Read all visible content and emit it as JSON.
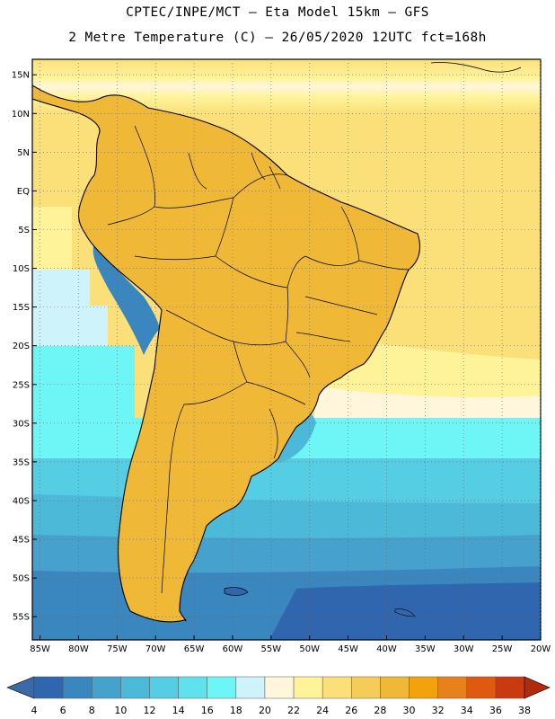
{
  "header": {
    "line1": "CPTEC/INPE/MCT –  Eta Model 15km – GFS",
    "line2": "2 Metre Temperature (C) – 26/05/2020 12UTC fct=168h"
  },
  "map": {
    "region": "South America",
    "lat_labels": [
      "15N",
      "10N",
      "5N",
      "EQ",
      "5S",
      "10S",
      "15S",
      "20S",
      "25S",
      "30S",
      "35S",
      "40S",
      "45S",
      "50S",
      "55S"
    ],
    "lon_labels": [
      "85W",
      "80W",
      "75W",
      "70W",
      "65W",
      "60W",
      "55W",
      "50W",
      "45W",
      "40W",
      "35W",
      "30W",
      "25W",
      "20W"
    ],
    "lat_range": [
      17,
      -58
    ],
    "lon_range": [
      -86,
      -20
    ]
  },
  "legend": {
    "units": "°C",
    "values": [
      "4",
      "6",
      "8",
      "10",
      "12",
      "14",
      "16",
      "18",
      "20",
      "22",
      "24",
      "26",
      "28",
      "30",
      "32",
      "34",
      "36",
      "38"
    ],
    "colors": [
      "#3a6aa8",
      "#2f66ae",
      "#3a86bf",
      "#46a2cd",
      "#4cb9d9",
      "#55cde3",
      "#5fe2ec",
      "#6ef6f6",
      "#cff3fb",
      "#fff6dc",
      "#fff39a",
      "#fbe07a",
      "#f4cc57",
      "#efb836",
      "#f2a20b",
      "#e8811c",
      "#dd5a0f",
      "#c93a10",
      "#b02a0c"
    ],
    "colors_note": "first and last colors are the under/over triangles"
  }
}
